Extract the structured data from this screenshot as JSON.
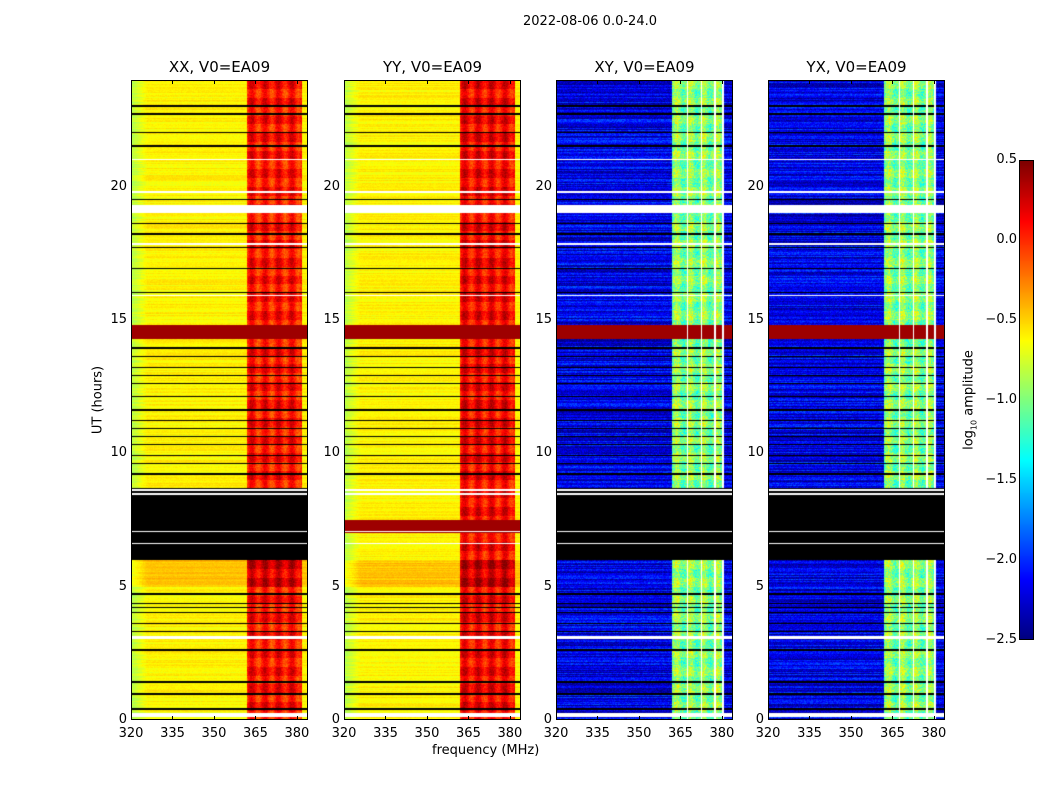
{
  "chart_data": {
    "type": "heatmap",
    "title": "2022-08-06 0.0-24.0",
    "xlabel": "frequency (MHz)",
    "ylabel": "UT (hours)",
    "xlim": [
      320,
      384
    ],
    "ylim": [
      0,
      24
    ],
    "xticks": [
      "320",
      "335",
      "350",
      "365",
      "380"
    ],
    "xtick_values": [
      320,
      335,
      350,
      365,
      380
    ],
    "yticks": [
      "0",
      "5",
      "10",
      "15",
      "20"
    ],
    "ytick_values": [
      0,
      5,
      10,
      15,
      20
    ],
    "colorbar": {
      "label_main": "log",
      "label_sub": "10",
      "label_rest": " amplitude",
      "range": [
        -2.5,
        0.5
      ],
      "ticks": [
        "0.5",
        "0.0",
        "−0.5",
        "−1.0",
        "−1.5",
        "−2.0",
        "−2.5"
      ],
      "tick_values": [
        0.5,
        0.0,
        -0.5,
        -1.0,
        -1.5,
        -2.0,
        -2.5
      ],
      "colormap": "jet"
    },
    "panels": [
      {
        "title": "XX, V0=EA09",
        "base_level": -0.6,
        "band_level": 0.05,
        "band_mhz": [
          362,
          382
        ],
        "black_block": true
      },
      {
        "title": "YY, V0=EA09",
        "base_level": -0.6,
        "band_level": 0.1,
        "band_mhz": [
          362,
          382
        ],
        "black_block": false
      },
      {
        "title": "XY, V0=EA09",
        "base_level": -2.2,
        "band_level": -1.0,
        "band_mhz": [
          362,
          380
        ],
        "black_block": true
      },
      {
        "title": "YX, V0=EA09",
        "base_level": -2.2,
        "band_level": -1.0,
        "band_mhz": [
          362,
          380
        ],
        "black_block": true
      }
    ],
    "flagged_block_hours": [
      6.0,
      8.7
    ],
    "yy_rfi_block_hours": [
      7.0,
      7.5
    ],
    "rfi_band_hours": [
      14.3,
      14.8
    ],
    "flagged_rows_hours": [
      [
        0.38,
        0.45
      ],
      [
        0.95,
        1.0
      ],
      [
        1.4,
        1.45
      ],
      [
        2.6,
        2.65
      ],
      [
        3.3,
        3.35
      ],
      [
        3.6,
        3.65
      ],
      [
        4.0,
        4.05
      ],
      [
        4.2,
        4.25
      ],
      [
        4.35,
        4.4
      ],
      [
        4.7,
        4.75
      ],
      [
        9.2,
        9.25
      ],
      [
        9.6,
        9.65
      ],
      [
        9.9,
        9.95
      ],
      [
        10.3,
        10.35
      ],
      [
        10.6,
        10.65
      ],
      [
        10.9,
        10.95
      ],
      [
        11.2,
        11.25
      ],
      [
        11.6,
        11.65
      ],
      [
        12.1,
        12.15
      ],
      [
        12.6,
        12.65
      ],
      [
        12.9,
        12.95
      ],
      [
        13.2,
        13.25
      ],
      [
        13.6,
        13.65
      ],
      [
        13.9,
        14.0
      ],
      [
        16.0,
        16.05
      ],
      [
        16.9,
        16.95
      ],
      [
        17.7,
        17.75
      ],
      [
        18.2,
        18.25
      ],
      [
        18.6,
        18.65
      ],
      [
        19.5,
        19.55
      ],
      [
        21.5,
        21.55
      ],
      [
        22.0,
        22.05
      ],
      [
        22.7,
        22.75
      ],
      [
        23.0,
        23.08
      ]
    ],
    "blank_rows_hours": [
      [
        0.1,
        0.25
      ],
      [
        3.05,
        3.15
      ],
      [
        6.6,
        6.65
      ],
      [
        7.05,
        7.1
      ],
      [
        8.45,
        8.5
      ],
      [
        8.6,
        8.65
      ],
      [
        17.8,
        17.9
      ],
      [
        19.0,
        19.3
      ],
      [
        19.75,
        19.85
      ],
      [
        21.0,
        21.05
      ],
      [
        15.9,
        15.95
      ]
    ],
    "blank_channels_mhz": [
      [
        367.3,
        367.9
      ],
      [
        372.3,
        372.9
      ],
      [
        377.3,
        377.9
      ],
      [
        380.2,
        380.6
      ]
    ]
  }
}
